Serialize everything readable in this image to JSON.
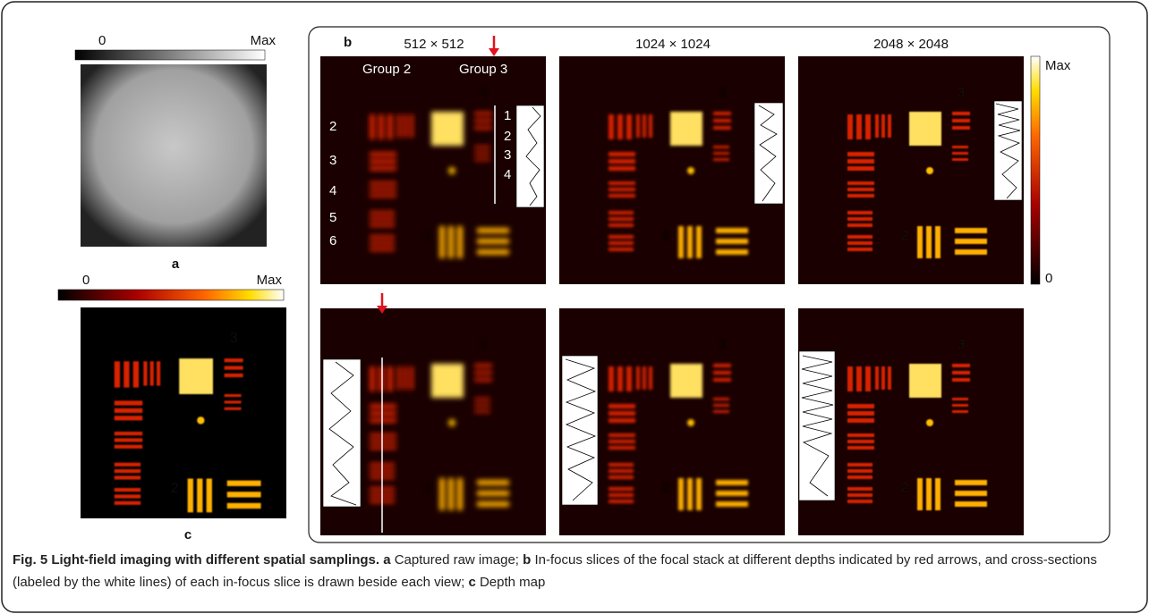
{
  "panel_a": {
    "colorbar_min": "0",
    "colorbar_max": "Max",
    "label": "a"
  },
  "panel_b": {
    "label": "b",
    "column_titles": [
      "512 × 512",
      "1024 × 1024",
      "2048 × 2048"
    ],
    "group_labels": [
      "Group 2",
      "Group 3"
    ],
    "group2_elements": [
      "2",
      "3",
      "4",
      "5",
      "6"
    ],
    "group3_elements": [
      "1",
      "2",
      "3",
      "4"
    ],
    "colorbar_max": "Max",
    "colorbar_min": "0"
  },
  "panel_c": {
    "colorbar_min": "0",
    "colorbar_max": "Max",
    "label": "c"
  },
  "caption": {
    "title": "Fig. 5 Light-field imaging with different spatial samplings.",
    "parts": [
      {
        "label": "a",
        "text": " Captured raw image; "
      },
      {
        "label": "b",
        "text": " In-focus slices of the focal stack at different depths indicated by red arrows, and cross-sections (labeled by the white lines) of each in-focus slice is drawn beside each view; "
      },
      {
        "label": "c",
        "text": " Depth map"
      }
    ]
  }
}
